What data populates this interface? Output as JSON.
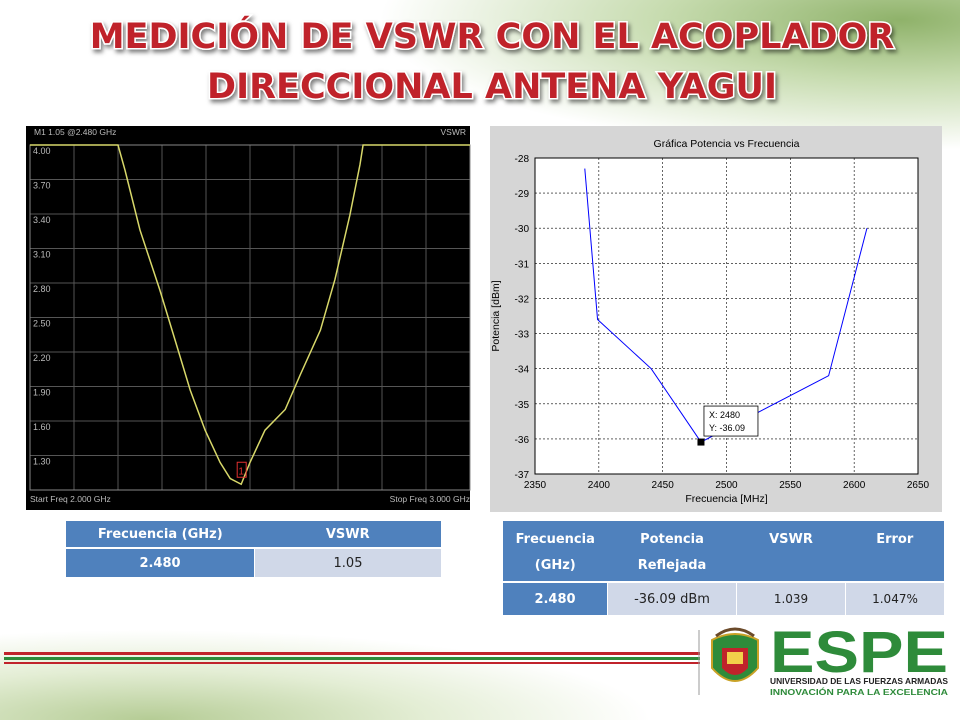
{
  "title": [
    "MEDICIÓN DE VSWR CON EL ACOPLADOR",
    "DIRECCIONAL ANTENA YAGUI"
  ],
  "chart_data": [
    {
      "type": "line",
      "header": "M1 1.05 @2.480 GHz",
      "ylabel": "VSWR",
      "start_label": "Start Freq 2.000 GHz",
      "stop_label": "Stop Freq 3.000 GHz",
      "x": [
        2.0,
        2.2,
        2.216,
        2.25,
        2.295,
        2.33,
        2.364,
        2.398,
        2.432,
        2.455,
        2.48,
        2.5,
        2.534,
        2.58,
        2.614,
        2.66,
        2.693,
        2.727,
        2.75,
        2.757,
        3.0
      ],
      "values": [
        4,
        4,
        3.78,
        3.26,
        2.74,
        2.3,
        1.87,
        1.52,
        1.24,
        1.1,
        1.05,
        1.24,
        1.52,
        1.7,
        2.0,
        2.39,
        2.83,
        3.39,
        3.83,
        4,
        4
      ],
      "color": "#d8d86a",
      "background": "#000000",
      "grid": true,
      "xlim": [
        2.0,
        3.0
      ],
      "ylim": [
        1.0,
        4.0
      ],
      "yticks": [
        {
          "value": 4,
          "label": "4.00"
        },
        {
          "value": 3.7,
          "label": "3.70"
        },
        {
          "value": 3.4,
          "label": "3.40"
        },
        {
          "value": 3.1,
          "label": "3.10"
        },
        {
          "value": 2.8,
          "label": "2.80"
        },
        {
          "value": 2.5,
          "label": "2.50"
        },
        {
          "value": 2.2,
          "label": "2.20"
        },
        {
          "value": 1.9,
          "label": "1.90"
        },
        {
          "value": 1.6,
          "label": "1.60"
        },
        {
          "value": 1.3,
          "label": "1.30"
        }
      ],
      "marker": {
        "label": "1",
        "x": 2.48,
        "y": 1.05
      }
    },
    {
      "type": "line",
      "title": "Gráfica Potencia vs Frecuencia",
      "xlabel": "Frecuencia [MHz]",
      "ylabel": "Potencia [dBm]",
      "x": [
        2389,
        2399,
        2441,
        2480,
        2580,
        2610
      ],
      "values": [
        -28.3,
        -32.6,
        -34.0,
        -36.09,
        -34.2,
        -30.0
      ],
      "color": "#0000ff",
      "background": "#ffffff",
      "grid": true,
      "xlim": [
        2350,
        2650
      ],
      "ylim": [
        -37,
        -28
      ],
      "xticks": [
        2350,
        2400,
        2450,
        2500,
        2550,
        2600,
        2650
      ],
      "yticks": [
        -37,
        -36,
        -35,
        -34,
        -33,
        -32,
        -31,
        -30,
        -29,
        -28
      ],
      "datatip": {
        "x": 2480,
        "y": -36.09,
        "lines": [
          "X: 2480",
          "Y: -36.09"
        ]
      }
    }
  ],
  "tables": [
    {
      "header": [
        "Frecuencia (GHz)",
        "VSWR"
      ],
      "rows": [
        [
          "2.480",
          "1.05"
        ]
      ]
    },
    {
      "header": [
        "Frecuencia (GHz)",
        "Potencia Reflejada",
        "VSWR",
        "Error"
      ],
      "rows": [
        [
          "2.480",
          "-36.09 dBm",
          "1.039",
          "1.047%"
        ]
      ]
    }
  ],
  "logo": {
    "name": "ESPE",
    "line1": "UNIVERSIDAD DE LAS FUERZAS ARMADAS",
    "line2": "INNOVACIÓN PARA LA EXCELENCIA"
  }
}
